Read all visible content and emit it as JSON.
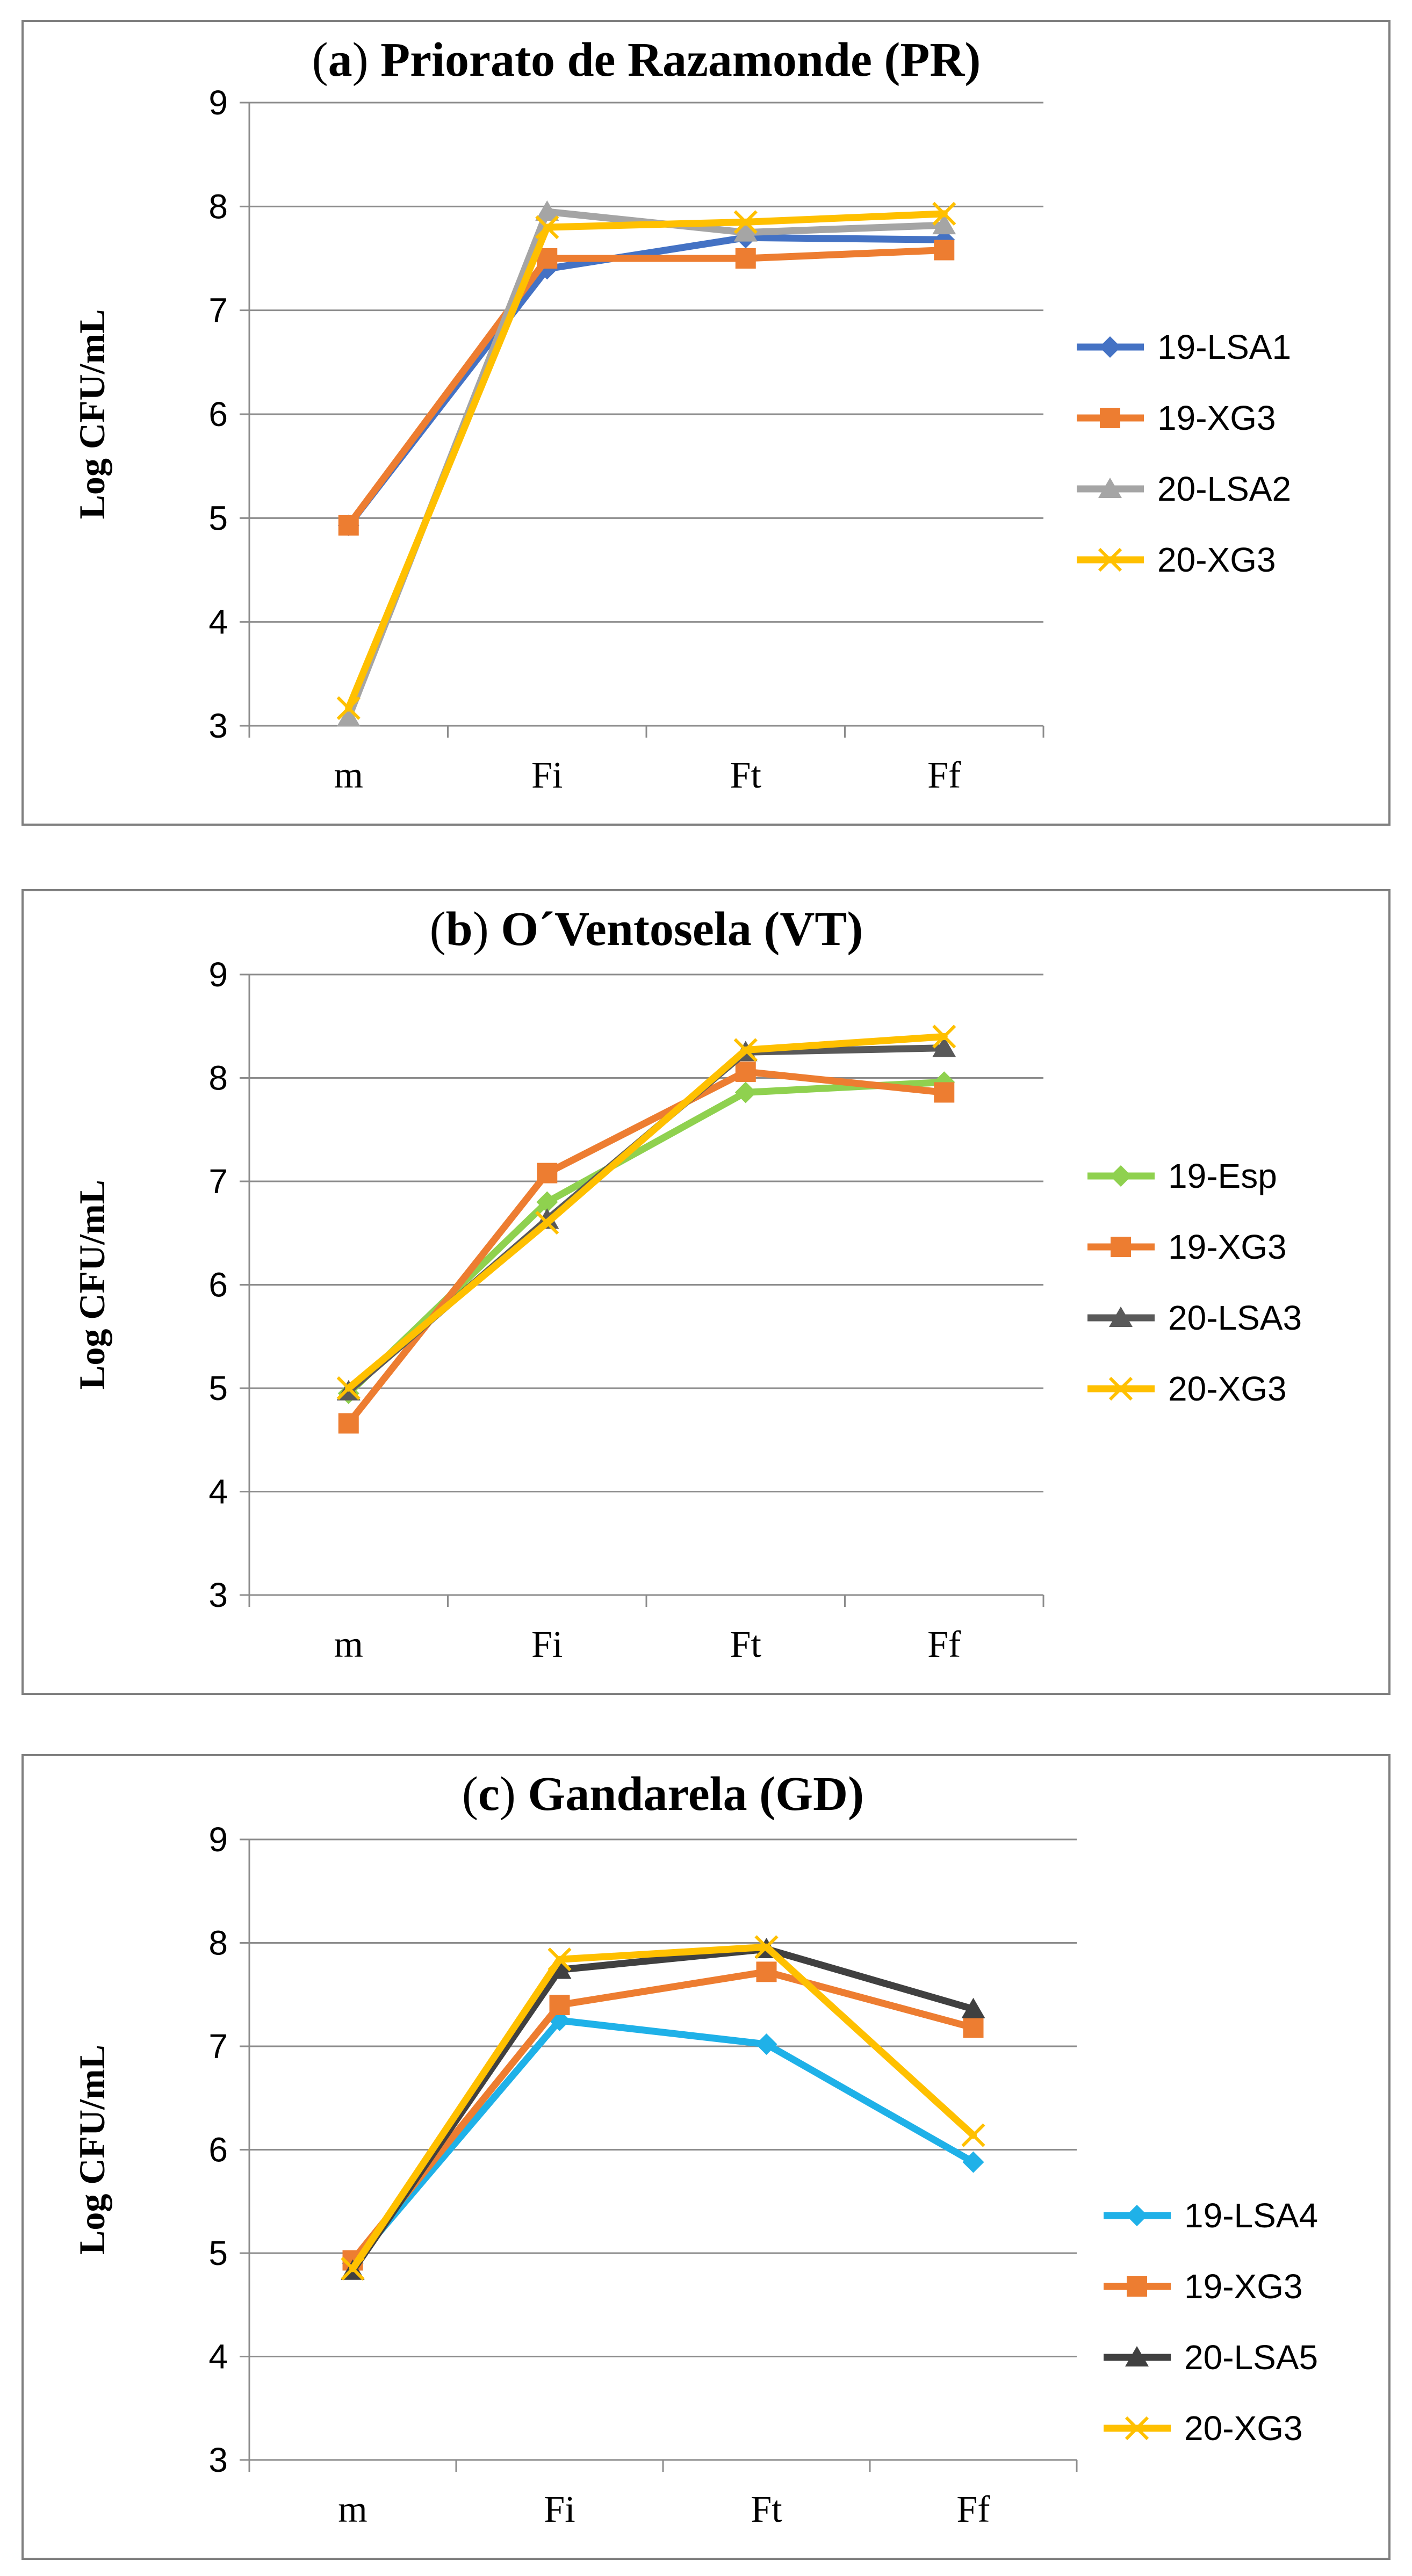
{
  "chart_data": [
    {
      "type": "line",
      "title": {
        "letter": "a",
        "name": "Priorato de Razamonde (PR)"
      },
      "ylabel": "Log CFU/mL",
      "xlabel": "",
      "categories": [
        "m",
        "Fi",
        "Ft",
        "Ff"
      ],
      "ylim": [
        3,
        9
      ],
      "yticks": [
        3,
        4,
        5,
        6,
        7,
        8,
        9
      ],
      "grid": true,
      "legend": "right",
      "series": [
        {
          "name": "19-LSA1",
          "color": "#4472c4",
          "marker": "diamond",
          "values": [
            4.93,
            7.4,
            7.7,
            7.68
          ]
        },
        {
          "name": "19-XG3",
          "color": "#ed7d31",
          "marker": "square",
          "values": [
            4.93,
            7.5,
            7.5,
            7.58
          ]
        },
        {
          "name": "20-LSA2",
          "color": "#a5a5a5",
          "marker": "triangle",
          "values": [
            3.08,
            7.95,
            7.75,
            7.82
          ]
        },
        {
          "name": "20-XG3",
          "color": "#ffc000",
          "marker": "x",
          "values": [
            3.17,
            7.8,
            7.85,
            7.93
          ]
        }
      ]
    },
    {
      "type": "line",
      "title": {
        "letter": "b",
        "name": "O´Ventosela (VT)"
      },
      "ylabel": "Log CFU/mL",
      "xlabel": "",
      "categories": [
        "m",
        "Fi",
        "Ft",
        "Ff"
      ],
      "ylim": [
        3,
        9
      ],
      "yticks": [
        3,
        4,
        5,
        6,
        7,
        8,
        9
      ],
      "grid": true,
      "legend": "right",
      "series": [
        {
          "name": "19-Esp",
          "color": "#8fd14f",
          "marker": "diamond",
          "values": [
            4.95,
            6.8,
            7.86,
            7.96
          ]
        },
        {
          "name": "19-XG3",
          "color": "#ed7d31",
          "marker": "square",
          "values": [
            4.66,
            7.08,
            8.06,
            7.86
          ]
        },
        {
          "name": "20-LSA3",
          "color": "#595959",
          "marker": "triangle",
          "values": [
            4.97,
            6.63,
            8.25,
            8.29
          ]
        },
        {
          "name": "20-XG3",
          "color": "#ffc000",
          "marker": "x",
          "values": [
            5.0,
            6.6,
            8.27,
            8.4
          ]
        }
      ]
    },
    {
      "type": "line",
      "title": {
        "letter": "c",
        "name": "Gandarela (GD)"
      },
      "ylabel": "Log CFU/mL",
      "xlabel": "",
      "categories": [
        "m",
        "Fi",
        "Ft",
        "Ff"
      ],
      "ylim": [
        3,
        9
      ],
      "yticks": [
        3,
        4,
        5,
        6,
        7,
        8,
        9
      ],
      "grid": true,
      "legend": "right",
      "series": [
        {
          "name": "19-LSA4",
          "color": "#1fb1e8",
          "marker": "diamond",
          "values": [
            4.9,
            7.25,
            7.02,
            5.88
          ]
        },
        {
          "name": "19-XG3",
          "color": "#ed7d31",
          "marker": "square",
          "values": [
            4.93,
            7.4,
            7.72,
            7.18
          ]
        },
        {
          "name": "20-LSA5",
          "color": "#404040",
          "marker": "triangle",
          "values": [
            4.83,
            7.74,
            7.94,
            7.36
          ]
        },
        {
          "name": "20-XG3",
          "color": "#ffc000",
          "marker": "x",
          "values": [
            4.85,
            7.84,
            7.96,
            6.14
          ]
        }
      ]
    }
  ]
}
